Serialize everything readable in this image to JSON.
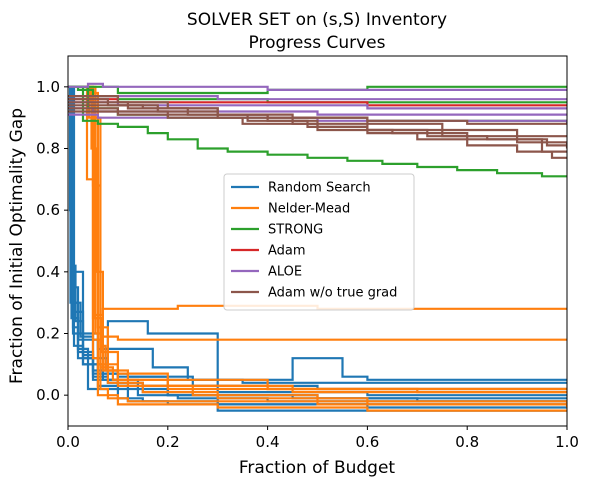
{
  "chart_data": {
    "type": "line",
    "step": true,
    "title_lines": [
      "SOLVER SET on (s,S) Inventory",
      "Progress Curves"
    ],
    "xlabel": "Fraction of Budget",
    "ylabel": "Fraction of Initial Optimality Gap",
    "xlim": [
      0,
      1
    ],
    "ylim": [
      -0.1,
      1.1
    ],
    "xticks": [
      "0.0",
      "0.2",
      "0.4",
      "0.6",
      "0.8",
      "1.0"
    ],
    "yticks": [
      "0.0",
      "0.2",
      "0.4",
      "0.6",
      "0.8",
      "1.0"
    ],
    "legend_position": "center",
    "series": [
      {
        "name": "Random Search",
        "color": "#1f77b4",
        "curves": [
          {
            "x": [
              0,
              0.01,
              0.03,
              0.06,
              0.17,
              0.24,
              0.45,
              0.55,
              0.6,
              1.0
            ],
            "y": [
              1.0,
              0.4,
              0.2,
              0.15,
              0.09,
              0.05,
              0.12,
              0.06,
              0.05,
              0.05
            ]
          },
          {
            "x": [
              0,
              0.008,
              0.02,
              0.05,
              0.1,
              0.2,
              0.35,
              0.6,
              1.0
            ],
            "y": [
              1.0,
              0.35,
              0.14,
              0.08,
              0.06,
              0.05,
              0.04,
              0.04,
              0.04
            ]
          },
          {
            "x": [
              0,
              0.01,
              0.03,
              0.08,
              0.15,
              0.25,
              0.45,
              0.7,
              1.0
            ],
            "y": [
              1.0,
              0.27,
              0.12,
              0.04,
              0.01,
              0.0,
              -0.01,
              -0.02,
              -0.02
            ]
          },
          {
            "x": [
              0,
              0.005,
              0.02,
              0.06,
              0.12,
              0.2,
              0.4,
              0.6,
              1.0
            ],
            "y": [
              1.0,
              0.3,
              0.18,
              0.03,
              -0.02,
              -0.03,
              -0.03,
              -0.04,
              -0.04
            ]
          },
          {
            "x": [
              0,
              0.01,
              0.03,
              0.05,
              0.1,
              0.2,
              0.3,
              0.6,
              1.0
            ],
            "y": [
              1.0,
              0.2,
              0.13,
              0.05,
              0.03,
              0.0,
              -0.05,
              -0.05,
              -0.05
            ]
          },
          {
            "x": [
              0,
              0.007,
              0.02,
              0.04,
              0.1,
              0.15,
              0.3,
              0.6,
              1.0
            ],
            "y": [
              1.0,
              0.25,
              0.15,
              0.02,
              -0.01,
              -0.02,
              -0.03,
              -0.03,
              -0.03
            ]
          },
          {
            "x": [
              0,
              0.006,
              0.015,
              0.03,
              0.06,
              0.12,
              0.25,
              0.5,
              1.0
            ],
            "y": [
              1.0,
              0.42,
              0.24,
              0.1,
              0.07,
              0.06,
              0.03,
              0.02,
              0.02
            ]
          },
          {
            "x": [
              0,
              0.01,
              0.02,
              0.05,
              0.08,
              0.16,
              0.3,
              0.6,
              1.0
            ],
            "y": [
              1.0,
              0.22,
              0.12,
              0.06,
              0.24,
              0.2,
              0.01,
              0.0,
              0.0
            ]
          },
          {
            "x": [
              0,
              0.012,
              0.03,
              0.07,
              0.14,
              0.22,
              0.4,
              0.7,
              1.0
            ],
            "y": [
              1.0,
              0.16,
              0.1,
              0.05,
              0.0,
              -0.01,
              -0.02,
              -0.02,
              -0.02
            ]
          },
          {
            "x": [
              0,
              0.004,
              0.01,
              0.025,
              0.05,
              0.1,
              0.2,
              0.5,
              1.0
            ],
            "y": [
              1.0,
              0.6,
              0.3,
              0.19,
              0.07,
              0.02,
              0.0,
              -0.01,
              -0.01
            ]
          }
        ]
      },
      {
        "name": "Nelder-Mead",
        "color": "#ff7f0e",
        "curves": [
          {
            "x": [
              0,
              0.04,
              0.05,
              0.06,
              0.1,
              0.2,
              0.4,
              0.6,
              1.0
            ],
            "y": [
              1.0,
              1.0,
              0.25,
              0.1,
              0.05,
              0.03,
              0.02,
              0.02,
              0.02
            ]
          },
          {
            "x": [
              0,
              0.045,
              0.055,
              0.07,
              0.12,
              0.25,
              0.5,
              1.0
            ],
            "y": [
              1.0,
              0.95,
              0.2,
              0.08,
              0.03,
              0.0,
              -0.02,
              -0.03
            ]
          },
          {
            "x": [
              0,
              0.05,
              0.06,
              0.08,
              0.15,
              0.3,
              0.6,
              1.0
            ],
            "y": [
              1.0,
              0.98,
              0.22,
              0.04,
              0.01,
              -0.01,
              -0.03,
              -0.04
            ]
          },
          {
            "x": [
              0,
              0.038,
              0.05,
              0.065,
              0.09,
              0.2,
              0.45,
              1.0
            ],
            "y": [
              1.0,
              0.7,
              0.18,
              0.09,
              0.05,
              0.03,
              0.02,
              0.02
            ]
          },
          {
            "x": [
              0,
              0.042,
              0.055,
              0.07,
              0.11,
              0.22,
              0.5,
              1.0
            ],
            "y": [
              1.0,
              0.9,
              0.26,
              0.28,
              0.28,
              0.29,
              0.28,
              0.28
            ]
          },
          {
            "x": [
              0,
              0.047,
              0.058,
              0.07,
              0.1,
              0.18,
              0.4,
              1.0
            ],
            "y": [
              1.0,
              0.8,
              0.4,
              0.19,
              0.18,
              0.18,
              0.18,
              0.18
            ]
          },
          {
            "x": [
              0,
              0.04,
              0.05,
              0.06,
              0.1,
              0.3,
              0.6,
              1.0
            ],
            "y": [
              1.0,
              0.99,
              0.12,
              0.0,
              -0.03,
              -0.04,
              -0.05,
              -0.05
            ]
          },
          {
            "x": [
              0,
              0.05,
              0.065,
              0.08,
              0.12,
              0.25,
              0.5,
              1.0
            ],
            "y": [
              1.0,
              0.68,
              0.02,
              -0.01,
              -0.02,
              -0.02,
              -0.03,
              -0.03
            ]
          },
          {
            "x": [
              0,
              0.043,
              0.052,
              0.068,
              0.1,
              0.2,
              0.45,
              1.0
            ],
            "y": [
              1.0,
              0.95,
              0.25,
              0.14,
              0.03,
              0.02,
              0.01,
              0.01
            ]
          },
          {
            "x": [
              0,
              0.055,
              0.065,
              0.075,
              0.1,
              0.2,
              0.4,
              0.7,
              1.0
            ],
            "y": [
              1.0,
              0.9,
              0.16,
              0.08,
              0.07,
              0.05,
              0.02,
              0.01,
              0.01
            ]
          }
        ]
      },
      {
        "name": "STRONG",
        "color": "#2ca02c",
        "curves": [
          {
            "x": [
              0,
              0.03,
              0.06,
              0.1,
              0.16,
              0.2,
              0.26,
              0.32,
              0.4,
              0.48,
              0.56,
              0.63,
              0.7,
              0.78,
              0.86,
              0.95,
              1.0
            ],
            "y": [
              1.0,
              0.89,
              0.88,
              0.87,
              0.85,
              0.83,
              0.8,
              0.79,
              0.78,
              0.77,
              0.76,
              0.75,
              0.74,
              0.73,
              0.72,
              0.71,
              0.71
            ]
          },
          {
            "x": [
              0,
              0.05,
              0.1,
              0.2,
              0.4,
              0.6,
              1.0
            ],
            "y": [
              1.0,
              1.0,
              0.98,
              0.98,
              0.99,
              1.0,
              1.0
            ]
          },
          {
            "x": [
              0,
              0.04,
              0.1,
              0.2,
              0.4,
              0.6,
              1.0
            ],
            "y": [
              1.0,
              0.93,
              0.91,
              0.9,
              0.9,
              0.89,
              0.89
            ]
          },
          {
            "x": [
              0,
              0.02,
              0.05,
              0.1,
              0.2,
              0.4,
              1.0
            ],
            "y": [
              1.0,
              0.99,
              0.97,
              0.96,
              0.96,
              0.95,
              0.95
            ]
          }
        ]
      },
      {
        "name": "Adam",
        "color": "#d62728",
        "curves": [
          {
            "x": [
              0,
              0.1,
              0.3,
              0.6,
              1.0
            ],
            "y": [
              0.96,
              0.95,
              0.95,
              0.94,
              0.94
            ]
          }
        ]
      },
      {
        "name": "ALOE",
        "color": "#9467bd",
        "curves": [
          {
            "x": [
              0,
              0.04,
              0.07,
              0.2,
              0.4,
              1.0
            ],
            "y": [
              1.0,
              1.01,
              1.0,
              1.0,
              0.99,
              0.99
            ]
          },
          {
            "x": [
              0,
              0.05,
              0.1,
              0.3,
              0.6,
              1.0
            ],
            "y": [
              0.97,
              0.97,
              0.97,
              0.96,
              0.96,
              0.96
            ]
          },
          {
            "x": [
              0,
              0.03,
              0.1,
              0.3,
              0.6,
              1.0
            ],
            "y": [
              0.95,
              0.95,
              0.94,
              0.94,
              0.93,
              0.93
            ]
          },
          {
            "x": [
              0,
              0.05,
              0.2,
              0.5,
              1.0
            ],
            "y": [
              0.93,
              0.92,
              0.92,
              0.91,
              0.91
            ]
          },
          {
            "x": [
              0,
              0.06,
              0.2,
              0.5,
              1.0
            ],
            "y": [
              0.91,
              0.9,
              0.9,
              0.89,
              0.88
            ]
          }
        ]
      },
      {
        "name": "Adam w/o true grad",
        "color": "#8c564b",
        "curves": [
          {
            "x": [
              0,
              0.1,
              0.2,
              0.3,
              0.4,
              0.5,
              0.6,
              0.7,
              0.8,
              0.9,
              0.97,
              1.0
            ],
            "y": [
              0.97,
              0.95,
              0.93,
              0.91,
              0.89,
              0.87,
              0.85,
              0.83,
              0.81,
              0.79,
              0.77,
              0.77
            ]
          },
          {
            "x": [
              0,
              0.12,
              0.24,
              0.36,
              0.48,
              0.6,
              0.72,
              0.84,
              0.96,
              1.0
            ],
            "y": [
              0.95,
              0.93,
              0.91,
              0.89,
              0.87,
              0.86,
              0.84,
              0.83,
              0.81,
              0.81
            ]
          },
          {
            "x": [
              0,
              0.15,
              0.3,
              0.45,
              0.6,
              0.75,
              0.9,
              1.0
            ],
            "y": [
              0.94,
              0.93,
              0.91,
              0.9,
              0.88,
              0.86,
              0.84,
              0.84
            ]
          },
          {
            "x": [
              0,
              0.1,
              0.2,
              0.35,
              0.5,
              0.65,
              0.8,
              0.95,
              1.0
            ],
            "y": [
              0.93,
              0.91,
              0.9,
              0.88,
              0.86,
              0.85,
              0.83,
              0.79,
              0.79
            ]
          },
          {
            "x": [
              0,
              0.08,
              0.18,
              0.3,
              0.45,
              0.6,
              0.75,
              0.9,
              1.0
            ],
            "y": [
              0.96,
              0.94,
              0.92,
              0.9,
              0.88,
              0.86,
              0.84,
              0.82,
              0.8
            ]
          },
          {
            "x": [
              0,
              0.2,
              0.4,
              0.6,
              0.8,
              1.0
            ],
            "y": [
              0.92,
              0.91,
              0.9,
              0.89,
              0.88,
              0.88
            ]
          }
        ]
      }
    ]
  }
}
